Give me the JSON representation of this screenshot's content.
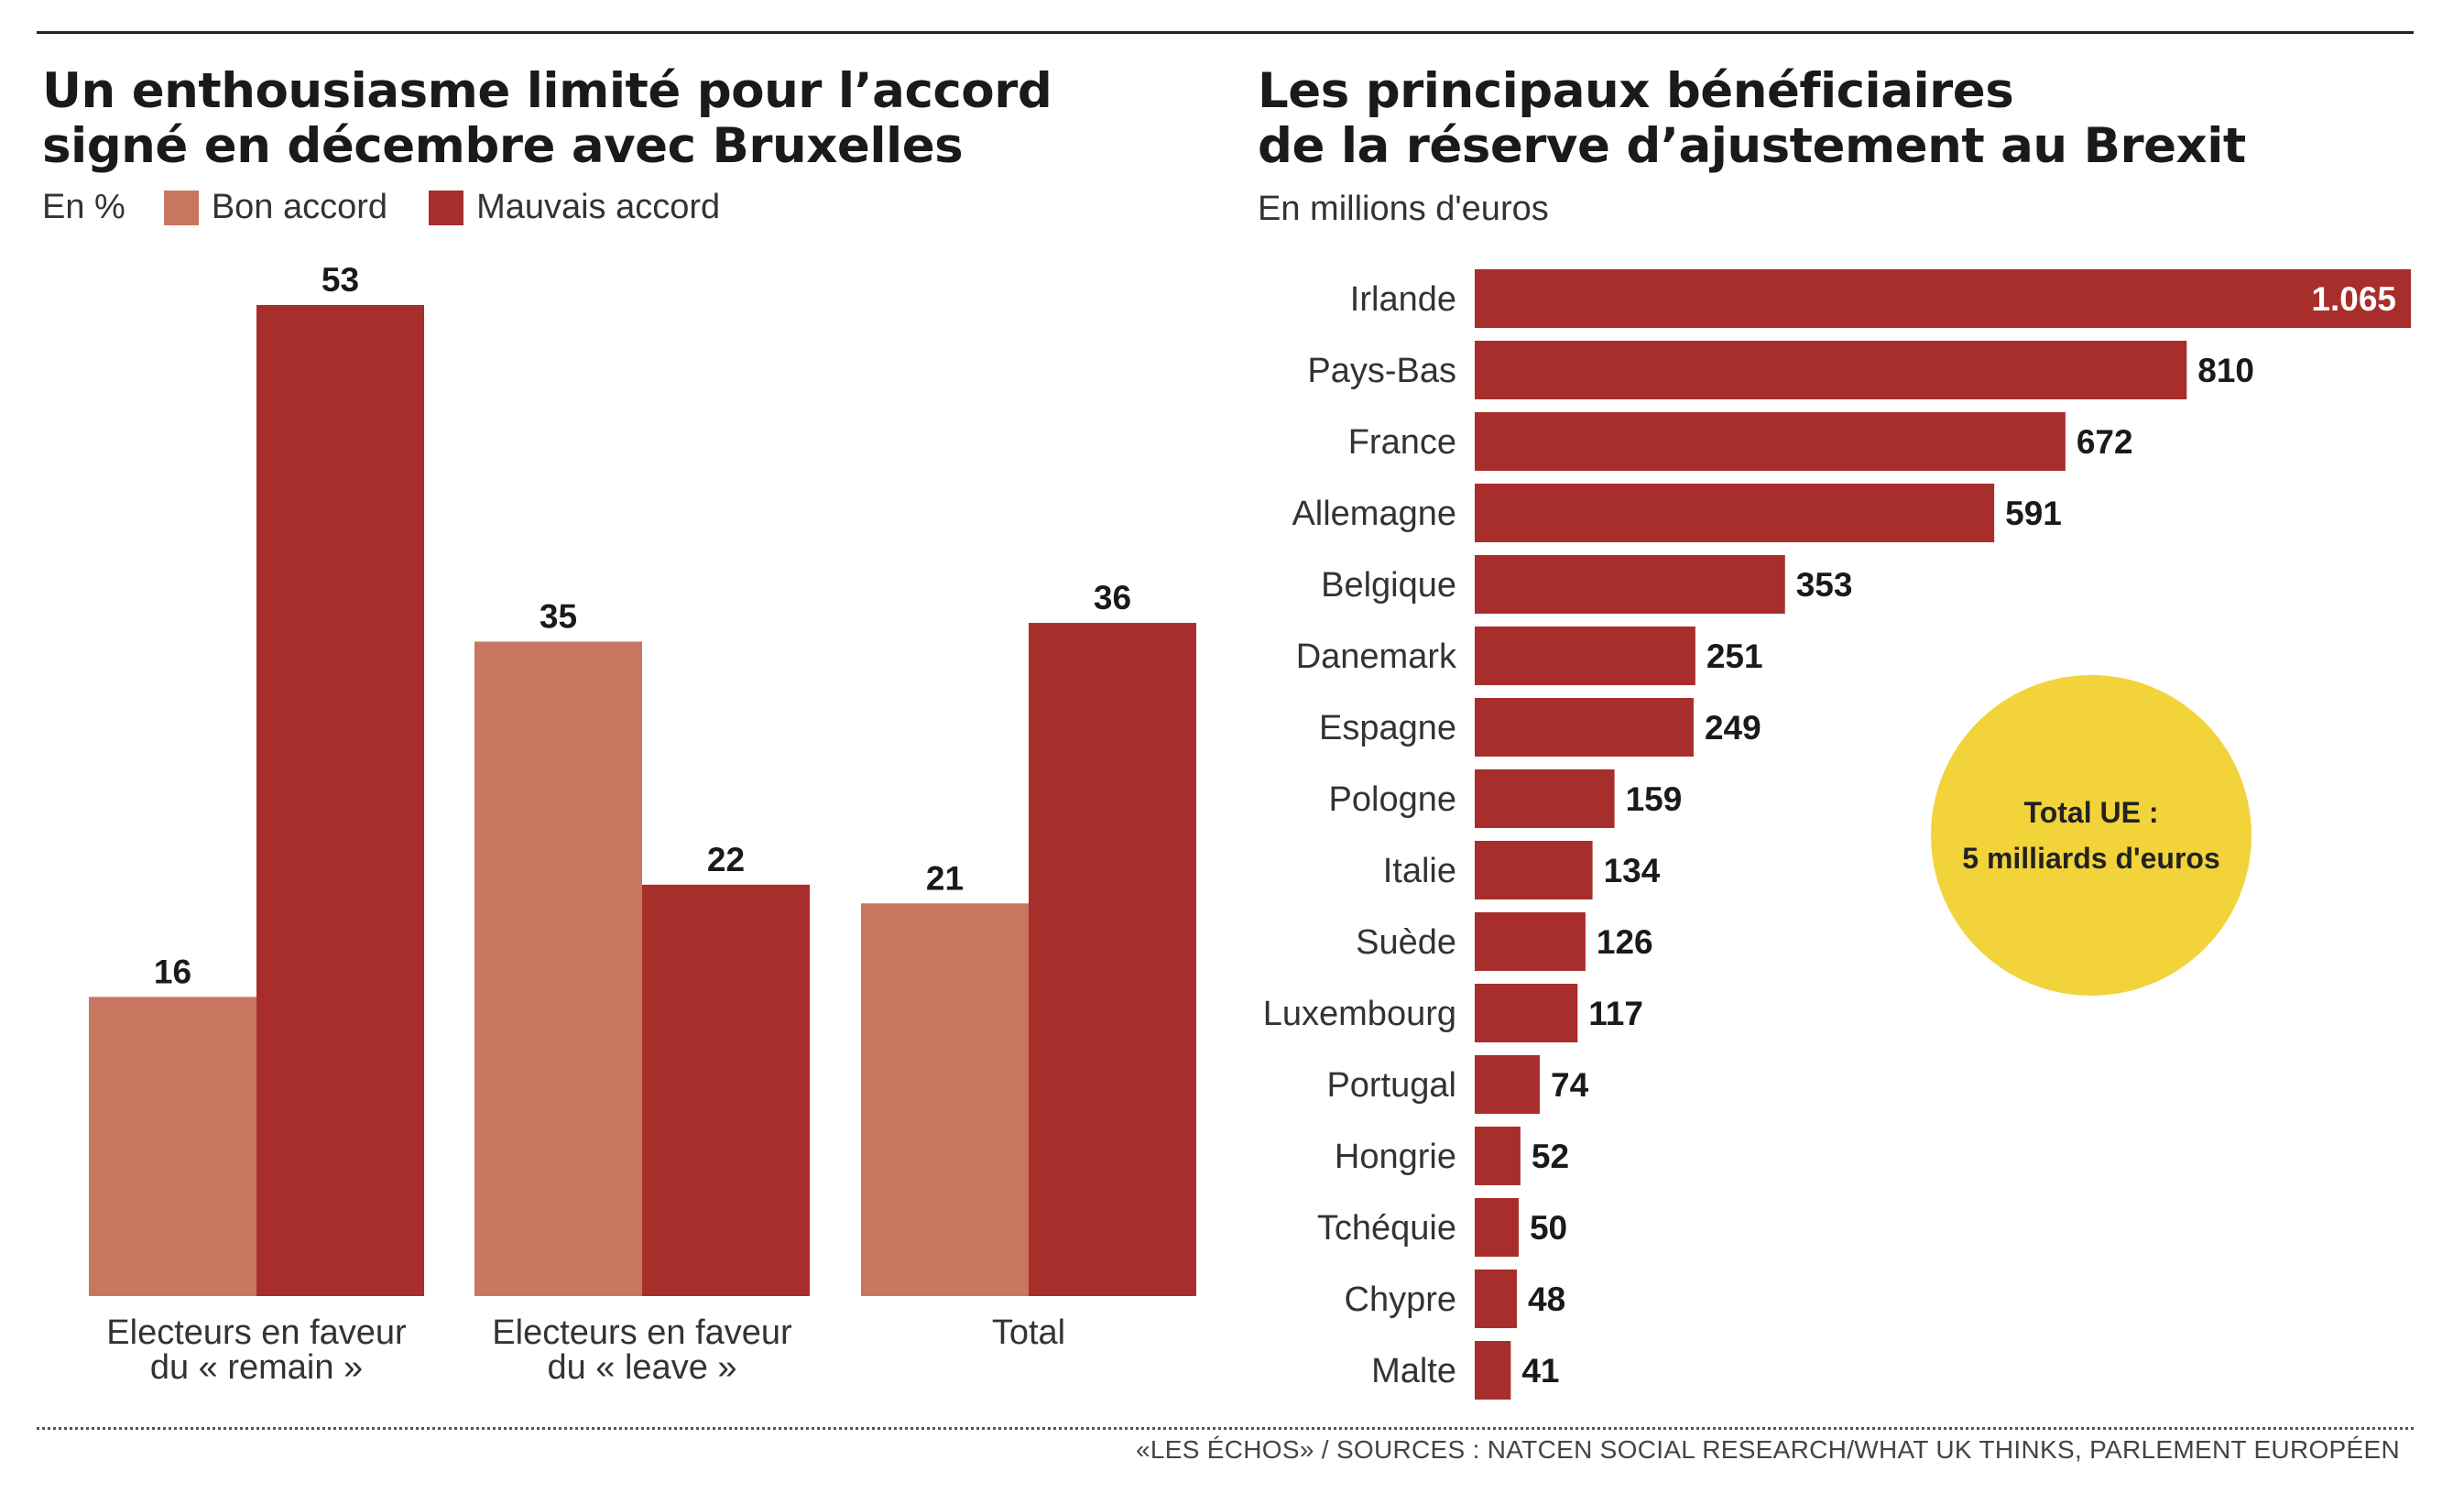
{
  "colors": {
    "bon": "#c87660",
    "mauvais": "#a82e2b",
    "circle": "#f2d33a"
  },
  "left": {
    "title_line1": "Un enthousiasme limité pour l’accord",
    "title_line2": "signé en décembre avec Bruxelles",
    "unit": "En %",
    "legend_bon": "Bon accord",
    "legend_mauvais": "Mauvais accord"
  },
  "right": {
    "title_line1": "Les principaux bénéficiaires",
    "title_line2": "de la réserve d’ajustement au Brexit",
    "subtitle": "En millions d'euros",
    "circle_line1": "Total UE :",
    "circle_line2": "5 milliards d'euros"
  },
  "source": "«LES ÉCHOS» / SOURCES : NATCEN SOCIAL RESEARCH/WHAT UK THINKS, PARLEMENT EUROPÉEN",
  "chart_data": [
    {
      "type": "bar",
      "title": "Un enthousiasme limité pour l’accord signé en décembre avec Bruxelles",
      "unit": "En %",
      "categories": [
        [
          "Electeurs en faveur",
          "du « remain »"
        ],
        [
          "Electeurs en faveur",
          "du « leave »"
        ],
        [
          "Total"
        ]
      ],
      "series": [
        {
          "name": "Bon accord",
          "values": [
            16,
            35,
            21
          ]
        },
        {
          "name": "Mauvais accord",
          "values": [
            53,
            22,
            36
          ]
        }
      ],
      "ylim": [
        0,
        53
      ],
      "legend": "top-left"
    },
    {
      "type": "bar",
      "orientation": "horizontal",
      "title": "Les principaux bénéficiaires de la réserve d’ajustement au Brexit",
      "unit": "En millions d'euros",
      "categories": [
        "Irlande",
        "Pays-Bas",
        "France",
        "Allemagne",
        "Belgique",
        "Danemark",
        "Espagne",
        "Pologne",
        "Italie",
        "Suède",
        "Luxembourg",
        "Portugal",
        "Hongrie",
        "Tchéquie",
        "Chypre",
        "Malte"
      ],
      "values": [
        1065,
        810,
        672,
        591,
        353,
        251,
        249,
        159,
        134,
        126,
        117,
        74,
        52,
        50,
        48,
        41
      ],
      "value_labels": [
        "1.065",
        "810",
        "672",
        "591",
        "353",
        "251",
        "249",
        "159",
        "134",
        "126",
        "117",
        "74",
        "52",
        "50",
        "48",
        "41"
      ]
    }
  ]
}
